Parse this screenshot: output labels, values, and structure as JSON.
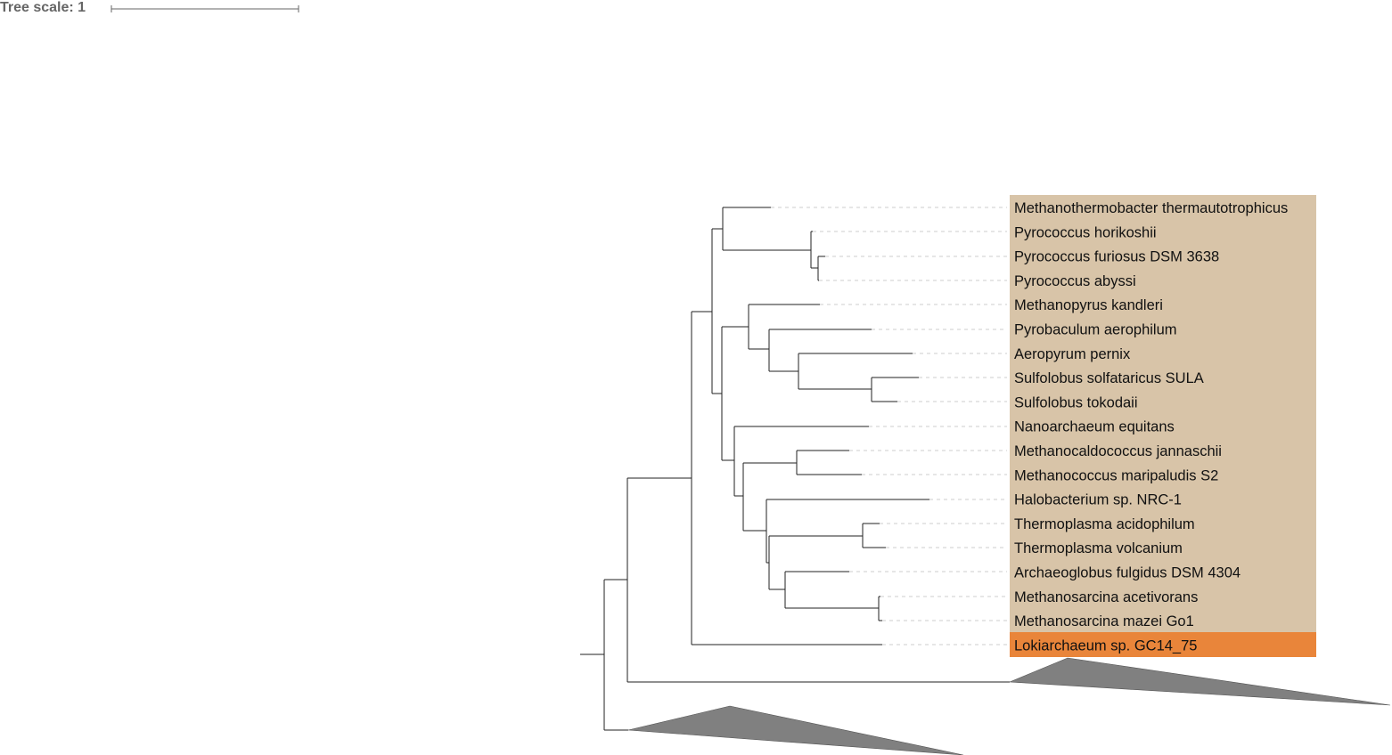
{
  "tree_scale": {
    "label": "Tree scale: 1"
  },
  "colors": {
    "clade_background": "#d8c4a8",
    "highlight_background": "#e9853a",
    "collapsed_clade": "#808080",
    "branch": "#222222",
    "dash": "#cccccc"
  },
  "leaves": [
    {
      "name": "Methanothermobacter thermautotrophicus",
      "highlight": false
    },
    {
      "name": "Pyrococcus horikoshii",
      "highlight": false
    },
    {
      "name": "Pyrococcus furiosus DSM 3638",
      "highlight": false
    },
    {
      "name": "Pyrococcus abyssi",
      "highlight": false
    },
    {
      "name": "Methanopyrus kandleri",
      "highlight": false
    },
    {
      "name": "Pyrobaculum aerophilum",
      "highlight": false
    },
    {
      "name": "Aeropyrum pernix",
      "highlight": false
    },
    {
      "name": "Sulfolobus solfataricus SULA",
      "highlight": false
    },
    {
      "name": "Sulfolobus tokodaii",
      "highlight": false
    },
    {
      "name": "Nanoarchaeum equitans",
      "highlight": false
    },
    {
      "name": "Methanocaldococcus jannaschii",
      "highlight": false
    },
    {
      "name": "Methanococcus maripaludis S2",
      "highlight": false
    },
    {
      "name": "Halobacterium sp. NRC-1",
      "highlight": false
    },
    {
      "name": "Thermoplasma acidophilum",
      "highlight": false
    },
    {
      "name": "Thermoplasma volcanium",
      "highlight": false
    },
    {
      "name": "Archaeoglobus fulgidus DSM 4304",
      "highlight": false
    },
    {
      "name": "Methanosarcina acetivorans",
      "highlight": false
    },
    {
      "name": "Methanosarcina mazei Go1",
      "highlight": false
    },
    {
      "name": "Lokiarchaeum sp. GC14_75",
      "highlight": true
    }
  ]
}
